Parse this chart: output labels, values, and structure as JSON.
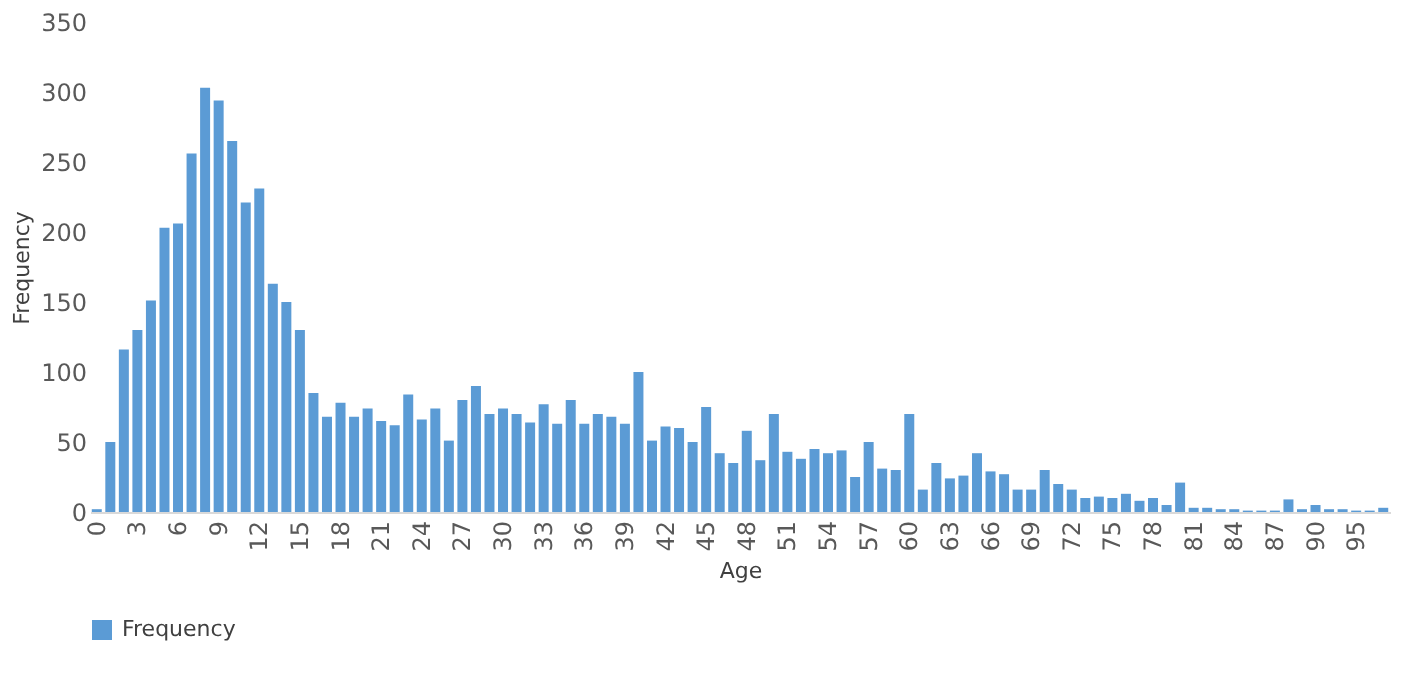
{
  "chart_data": {
    "type": "bar",
    "xlabel": "Age",
    "ylabel": "Frequency",
    "categories": [
      "0",
      null,
      null,
      "3",
      null,
      null,
      "6",
      null,
      null,
      "9",
      null,
      null,
      "12",
      null,
      null,
      "15",
      null,
      null,
      "18",
      null,
      null,
      "21",
      null,
      null,
      "24",
      null,
      null,
      "27",
      null,
      null,
      "30",
      null,
      null,
      "33",
      null,
      null,
      "36",
      null,
      null,
      "39",
      null,
      null,
      "42",
      null,
      null,
      "45",
      null,
      null,
      "48",
      null,
      null,
      "51",
      null,
      null,
      "54",
      null,
      null,
      "57",
      null,
      null,
      "60",
      null,
      null,
      "63",
      null,
      null,
      "66",
      null,
      null,
      "69",
      null,
      null,
      "72",
      null,
      null,
      "75",
      null,
      null,
      "78",
      null,
      null,
      "81",
      null,
      null,
      "84",
      null,
      null,
      "87",
      null,
      null,
      "90",
      null,
      null,
      "95",
      null,
      null
    ],
    "series": [
      {
        "name": "Frequency",
        "color": "#5b9bd5",
        "values": [
          2,
          50,
          116,
          130,
          151,
          203,
          206,
          256,
          303,
          294,
          265,
          221,
          231,
          163,
          150,
          130,
          85,
          68,
          78,
          68,
          74,
          65,
          62,
          84,
          66,
          74,
          51,
          80,
          90,
          70,
          74,
          70,
          64,
          77,
          63,
          80,
          63,
          70,
          68,
          63,
          100,
          51,
          61,
          60,
          50,
          75,
          42,
          35,
          58,
          37,
          70,
          43,
          38,
          45,
          42,
          44,
          25,
          50,
          31,
          30,
          70,
          16,
          35,
          24,
          26,
          42,
          29,
          27,
          16,
          16,
          30,
          20,
          16,
          10,
          11,
          10,
          13,
          8,
          10,
          5,
          21,
          3,
          3,
          2,
          2,
          1,
          1,
          1,
          9,
          2,
          5,
          2,
          2,
          1,
          1,
          3
        ]
      }
    ],
    "ylim": [
      0,
      350
    ],
    "yticks": [
      0,
      50,
      100,
      150,
      200,
      250,
      300,
      350
    ],
    "grid": false,
    "legend": "bottom"
  }
}
